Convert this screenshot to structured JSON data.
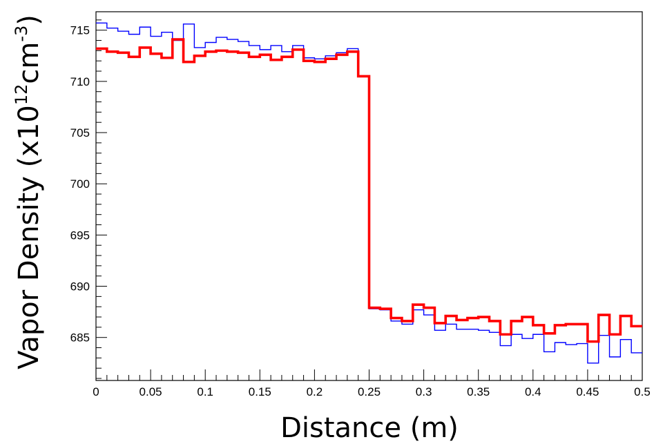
{
  "chart_data": {
    "type": "line",
    "style": "step-histogram",
    "xlabel": "Distance (m)",
    "ylabel_parts": {
      "base": "Vapor Density (x10",
      "exp1": "12",
      "mid": "cm",
      "exp2": "-3",
      "end": ")"
    },
    "xlim": [
      0,
      0.5
    ],
    "ylim": [
      680.8,
      716.8
    ],
    "x_ticks": [
      {
        "value": 0,
        "label": "0"
      },
      {
        "value": 0.05,
        "label": "0.05"
      },
      {
        "value": 0.1,
        "label": "0.1"
      },
      {
        "value": 0.15,
        "label": "0.15"
      },
      {
        "value": 0.2,
        "label": "0.2"
      },
      {
        "value": 0.25,
        "label": "0.25"
      },
      {
        "value": 0.3,
        "label": "0.3"
      },
      {
        "value": 0.35,
        "label": "0.35"
      },
      {
        "value": 0.4,
        "label": "0.4"
      },
      {
        "value": 0.45,
        "label": "0.45"
      },
      {
        "value": 0.5,
        "label": "0.5"
      }
    ],
    "y_ticks": [
      {
        "value": 685,
        "label": "685"
      },
      {
        "value": 690,
        "label": "690"
      },
      {
        "value": 695,
        "label": "695"
      },
      {
        "value": 700,
        "label": "700"
      },
      {
        "value": 705,
        "label": "705"
      },
      {
        "value": 710,
        "label": "710"
      },
      {
        "value": 715,
        "label": "715"
      }
    ],
    "y_minor_step": 1,
    "x_minor_step": 0.01,
    "bin_width": 0.01,
    "series": [
      {
        "color": "#0000ff",
        "values": [
          715.7,
          715.2,
          714.9,
          714.6,
          715.3,
          714.4,
          714.8,
          714.0,
          715.6,
          713.3,
          713.8,
          714.3,
          714.1,
          713.9,
          713.5,
          713.1,
          713.5,
          712.9,
          713.5,
          712.3,
          712.2,
          712.5,
          712.8,
          713.2,
          710.5,
          687.8,
          687.7,
          686.6,
          686.3,
          687.7,
          687.2,
          685.7,
          686.3,
          685.8,
          685.8,
          685.7,
          685.5,
          684.2,
          685.3,
          684.9,
          685.3,
          683.6,
          684.5,
          684.3,
          684.4,
          682.5,
          685.2,
          683.1,
          684.8,
          683.5
        ]
      },
      {
        "color": "#ff0000",
        "values": [
          713.2,
          712.9,
          712.8,
          712.4,
          713.3,
          712.7,
          712.3,
          714.1,
          711.9,
          712.5,
          712.9,
          713.0,
          712.9,
          712.8,
          712.4,
          712.6,
          712.1,
          712.4,
          713.1,
          712.0,
          711.9,
          712.2,
          712.6,
          712.9,
          710.5,
          687.9,
          687.8,
          686.9,
          686.6,
          688.2,
          687.9,
          686.4,
          687.1,
          686.7,
          686.9,
          687.0,
          686.6,
          685.3,
          686.6,
          687.0,
          686.2,
          685.4,
          686.2,
          686.3,
          686.3,
          684.6,
          687.2,
          685.3,
          687.1,
          686.1
        ]
      }
    ]
  }
}
